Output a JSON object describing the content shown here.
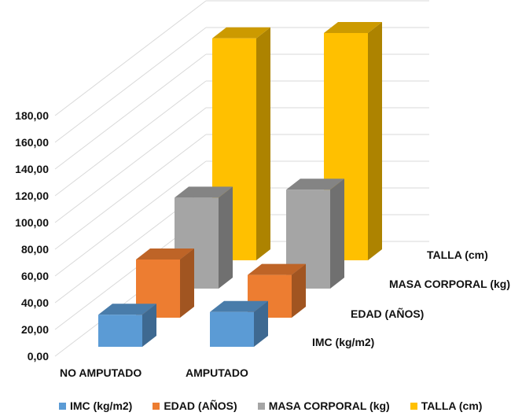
{
  "chart_data": {
    "type": "bar",
    "subtype": "3d-column",
    "title": "",
    "xlabel": "",
    "ylabel": "",
    "categories": [
      "NO AMPUTADO",
      "AMPUTADO"
    ],
    "series": [
      {
        "name": "IMC (kg/m2)",
        "color": "#5B9BD5",
        "values": [
          24,
          26
        ]
      },
      {
        "name": "EDAD (AÑOS)",
        "color": "#ED7D31",
        "values": [
          43.5,
          32
        ]
      },
      {
        "name": "MASA CORPORAL (kg)",
        "color": "#A5A5A5",
        "values": [
          68,
          74
        ]
      },
      {
        "name": "TALLA (cm)",
        "color": "#FFC000",
        "values": [
          166,
          170
        ]
      }
    ],
    "ylim": [
      0,
      180
    ],
    "yticks": [
      "0,00",
      "20,00",
      "40,00",
      "60,00",
      "80,00",
      "100,00",
      "120,00",
      "140,00",
      "160,00",
      "180,00"
    ],
    "grid": true,
    "legend_position": "bottom"
  },
  "axis": {
    "yticks": [
      "0,00",
      "20,00",
      "40,00",
      "60,00",
      "80,00",
      "100,00",
      "120,00",
      "140,00",
      "160,00",
      "180,00"
    ],
    "categories": [
      "NO AMPUTADO",
      "AMPUTADO"
    ],
    "series_depth_labels": [
      "IMC (kg/m2)",
      "EDAD (AÑOS)",
      "MASA CORPORAL (kg)",
      "TALLA (cm)"
    ]
  },
  "legend": [
    {
      "label": "IMC (kg/m2)",
      "color": "#5B9BD5"
    },
    {
      "label": "EDAD (AÑOS)",
      "color": "#ED7D31"
    },
    {
      "label": "MASA CORPORAL (kg)",
      "color": "#A5A5A5"
    },
    {
      "label": "TALLA (cm)",
      "color": "#FFC000"
    }
  ]
}
